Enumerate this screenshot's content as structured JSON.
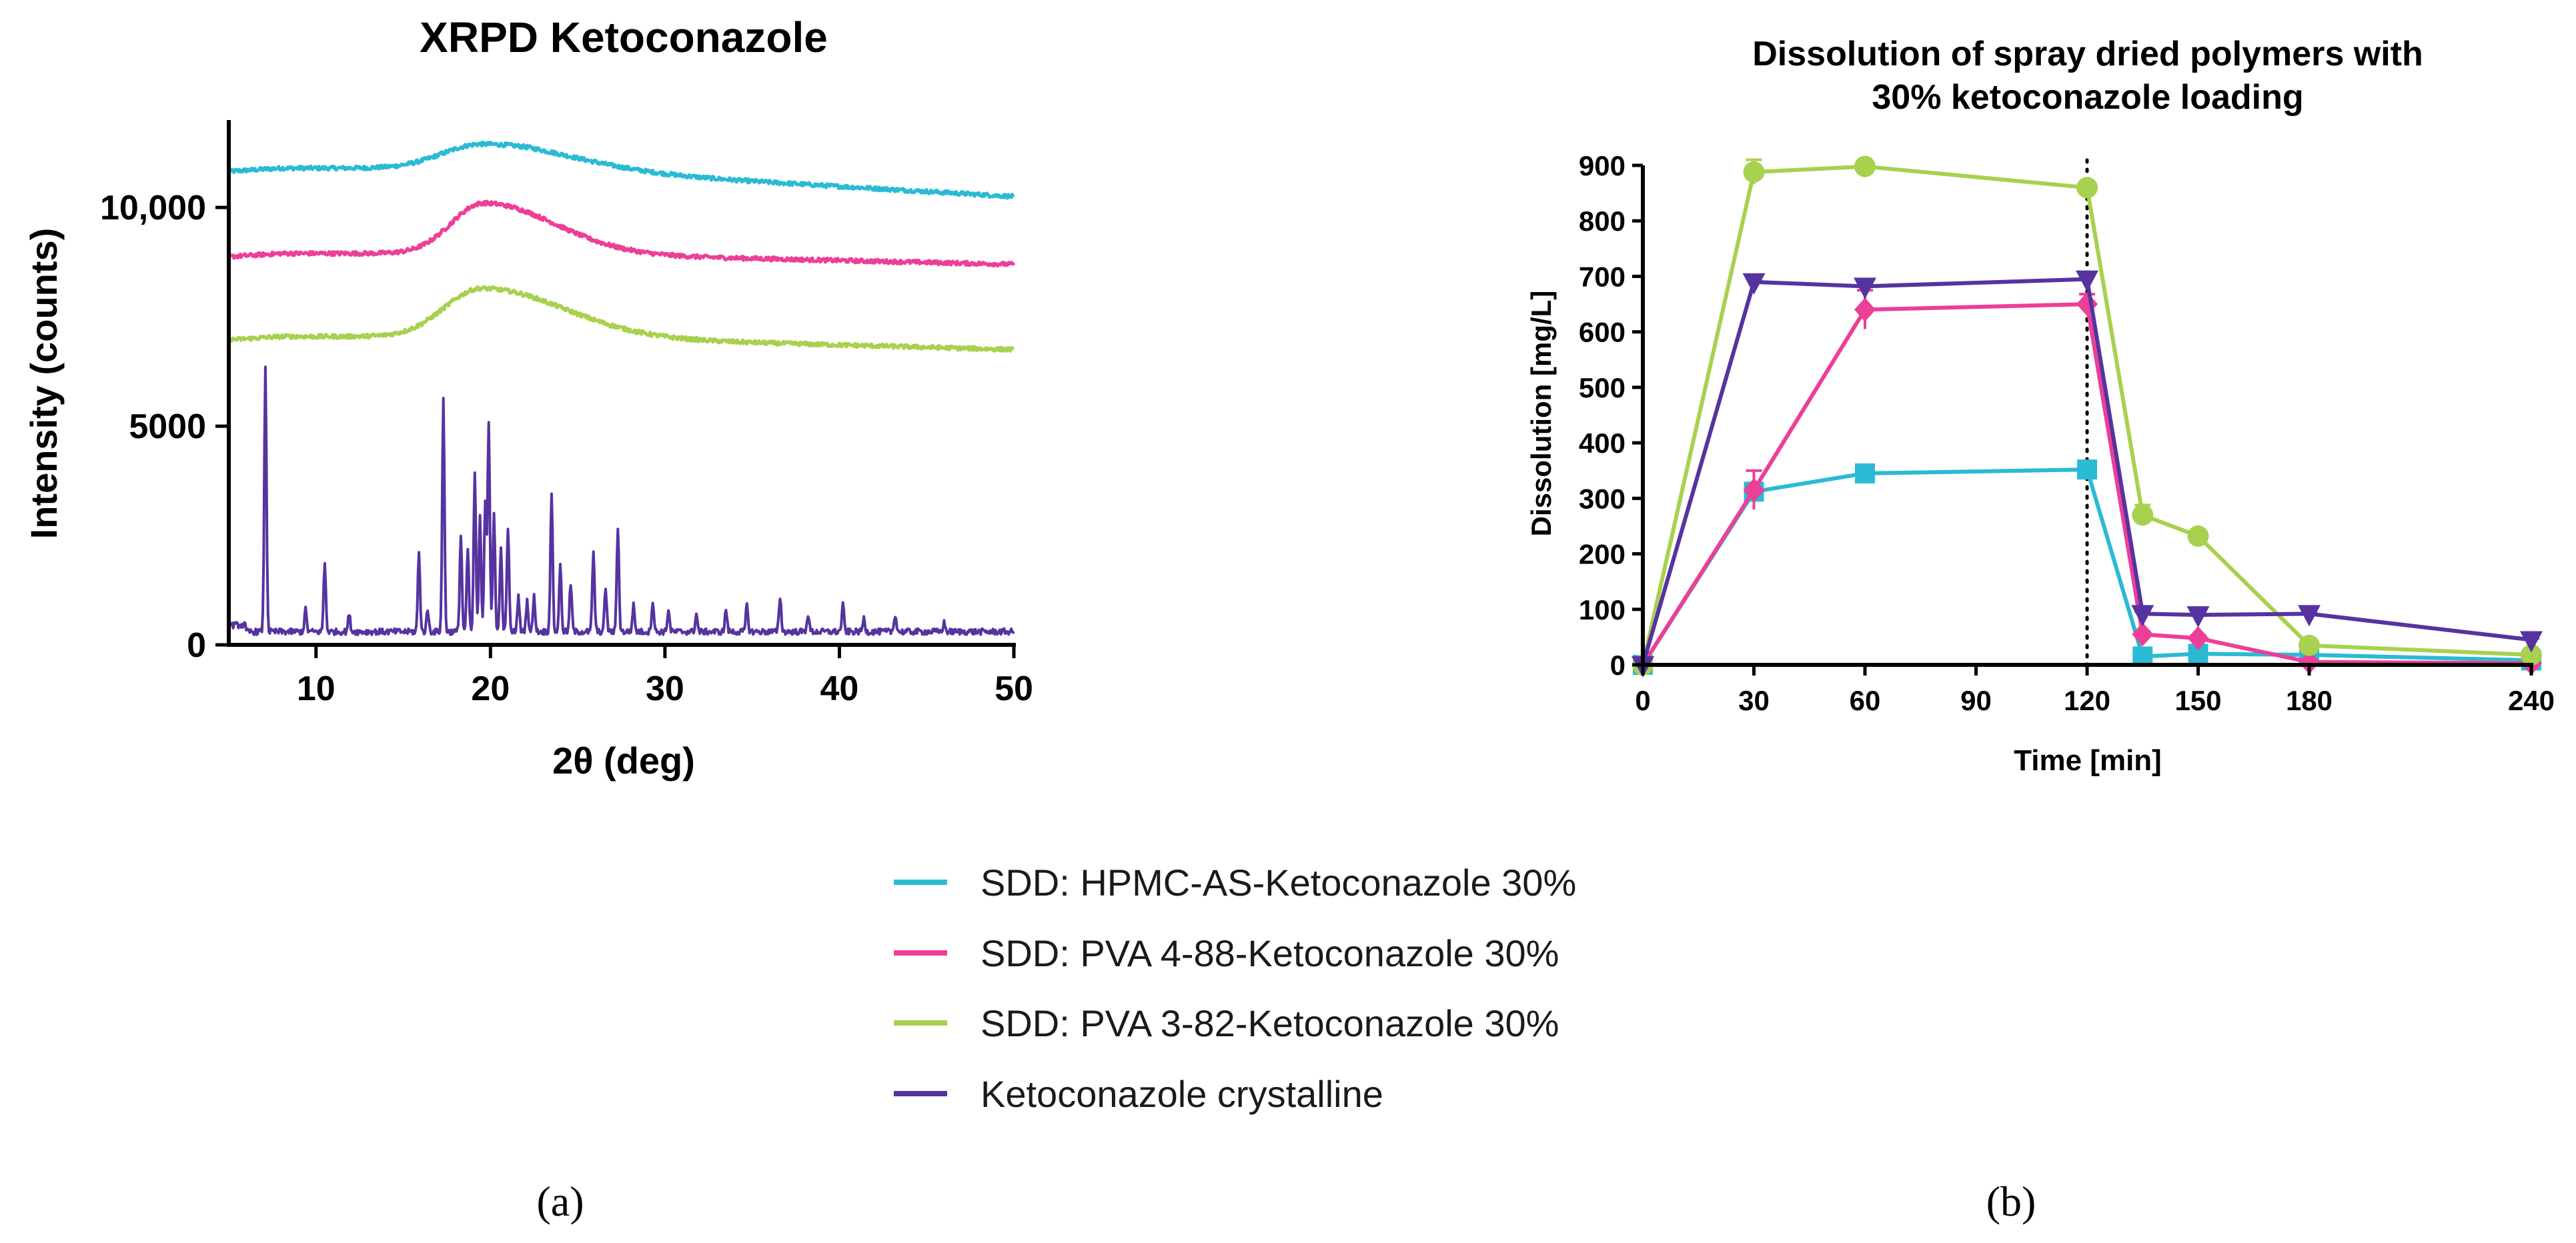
{
  "chart_data": [
    {
      "type": "line",
      "title": "XRPD Ketoconazole",
      "xlabel": "2θ (deg)",
      "ylabel": "Intensity (counts)",
      "xlim": [
        5,
        50
      ],
      "ylim": [
        0,
        12000
      ],
      "x_ticks": [
        10,
        20,
        30,
        40,
        50
      ],
      "x_tick_labels": [
        "10",
        "20",
        "30",
        "40",
        "50"
      ],
      "y_ticks": [
        0,
        5000,
        10000
      ],
      "y_tick_labels": [
        "0",
        "5000",
        "10,000"
      ],
      "series": [
        {
          "name": "SDD: HPMC-AS-Ketoconazole 30%",
          "kind": "halo",
          "baseline": 10900,
          "end": 10250,
          "peak_center": 19.5,
          "peak_height": 550,
          "peak_width": 3.2
        },
        {
          "name": "SDD: PVA 4-88-Ketoconazole 30%",
          "kind": "halo",
          "baseline": 8950,
          "end": 8700,
          "peak_center": 19.6,
          "peak_height": 1150,
          "peak_width": 2.6
        },
        {
          "name": "SDD: PVA 3-82-Ketoconazole 30%",
          "kind": "halo",
          "baseline": 7050,
          "end": 6750,
          "peak_center": 19.5,
          "peak_height": 1100,
          "peak_width": 3.0
        },
        {
          "name": "Ketoconazole crystalline",
          "kind": "crystalline",
          "baseline": 300,
          "peaks": [
            [
              7.1,
              6000
            ],
            [
              9.4,
              500
            ],
            [
              10.5,
              1550
            ],
            [
              11.9,
              400
            ],
            [
              15.9,
              1800
            ],
            [
              16.4,
              500
            ],
            [
              17.3,
              5300
            ],
            [
              18.3,
              2200
            ],
            [
              18.7,
              1900
            ],
            [
              19.1,
              3600
            ],
            [
              19.4,
              2600
            ],
            [
              19.7,
              3000
            ],
            [
              19.9,
              4800
            ],
            [
              20.2,
              2700
            ],
            [
              20.6,
              1900
            ],
            [
              21.0,
              2400
            ],
            [
              21.6,
              800
            ],
            [
              22.1,
              700
            ],
            [
              22.5,
              800
            ],
            [
              23.5,
              3200
            ],
            [
              24.0,
              1500
            ],
            [
              24.6,
              1100
            ],
            [
              25.9,
              1800
            ],
            [
              26.6,
              1000
            ],
            [
              27.3,
              2400
            ],
            [
              28.2,
              600
            ],
            [
              29.3,
              700
            ],
            [
              30.2,
              500
            ],
            [
              31.8,
              400
            ],
            [
              33.5,
              500
            ],
            [
              34.7,
              600
            ],
            [
              36.6,
              800
            ],
            [
              38.2,
              400
            ],
            [
              40.2,
              600
            ],
            [
              41.4,
              300
            ],
            [
              43.2,
              400
            ],
            [
              46.0,
              200
            ]
          ]
        }
      ]
    },
    {
      "type": "line",
      "title": "Dissolution of spray dried polymers with 30% ketoconazole loading",
      "title_lines": [
        "Dissolution of spray dried polymers with",
        "30% ketoconazole loading"
      ],
      "xlabel": "Time [min]",
      "ylabel": "Dissolution [mg/L]",
      "xlim": [
        0,
        240
      ],
      "ylim": [
        0,
        900
      ],
      "x_ticks": [
        0,
        30,
        60,
        90,
        120,
        150,
        180,
        240
      ],
      "x_tick_labels": [
        "0",
        "30",
        "60",
        "90",
        "120",
        "150",
        "180",
        "240"
      ],
      "y_ticks": [
        0,
        100,
        200,
        300,
        400,
        500,
        600,
        700,
        800,
        900
      ],
      "y_tick_labels": [
        "0",
        "100",
        "200",
        "300",
        "400",
        "500",
        "600",
        "700",
        "800",
        "900"
      ],
      "reference_line_x": 120,
      "series": [
        {
          "name": "SDD: HPMC-AS-Ketoconazole 30%",
          "marker": "square",
          "x": [
            0,
            30,
            60,
            120,
            135,
            150,
            180,
            240
          ],
          "y": [
            0,
            312,
            345,
            352,
            15,
            20,
            18,
            8
          ],
          "error": [
            0,
            10,
            8,
            10,
            3,
            3,
            3,
            2
          ]
        },
        {
          "name": "SDD: PVA 4-88-Ketoconazole 30%",
          "marker": "diamond",
          "x": [
            0,
            30,
            60,
            120,
            135,
            150,
            180,
            240
          ],
          "y": [
            0,
            315,
            640,
            650,
            55,
            48,
            5,
            3
          ],
          "error": [
            0,
            35,
            35,
            18,
            5,
            5,
            2,
            1
          ]
        },
        {
          "name": "SDD: PVA 3-82-Ketoconazole 30%",
          "marker": "circle",
          "x": [
            0,
            30,
            60,
            120,
            135,
            150,
            180,
            240
          ],
          "y": [
            0,
            888,
            898,
            860,
            270,
            232,
            35,
            18
          ],
          "error": [
            0,
            22,
            6,
            8,
            18,
            6,
            4,
            2
          ]
        },
        {
          "name": "Ketoconazole crystalline",
          "marker": "triangle-down",
          "x": [
            0,
            30,
            60,
            120,
            135,
            150,
            180,
            240
          ],
          "y": [
            0,
            690,
            682,
            695,
            92,
            90,
            92,
            45
          ],
          "error": [
            0,
            6,
            6,
            6,
            4,
            4,
            4,
            3
          ]
        }
      ]
    }
  ],
  "legend": {
    "entries": [
      {
        "label": "SDD: HPMC-AS-Ketoconazole 30%",
        "color": "#2bbad4"
      },
      {
        "label": "SDD: PVA 4-88-Ketoconazole 30%",
        "color": "#ec3f97"
      },
      {
        "label": "SDD: PVA 3-82-Ketoconazole 30%",
        "color": "#a7d14e"
      },
      {
        "label": "Ketoconazole crystalline",
        "color": "#5633a0"
      }
    ]
  },
  "panels": {
    "a": "(a)",
    "b": "(b)"
  },
  "colors": {
    "hpmc": "#2bbad4",
    "pva488": "#ec3f97",
    "pva382": "#a7d14e",
    "cryst": "#5633a0",
    "axis": "#000000"
  }
}
